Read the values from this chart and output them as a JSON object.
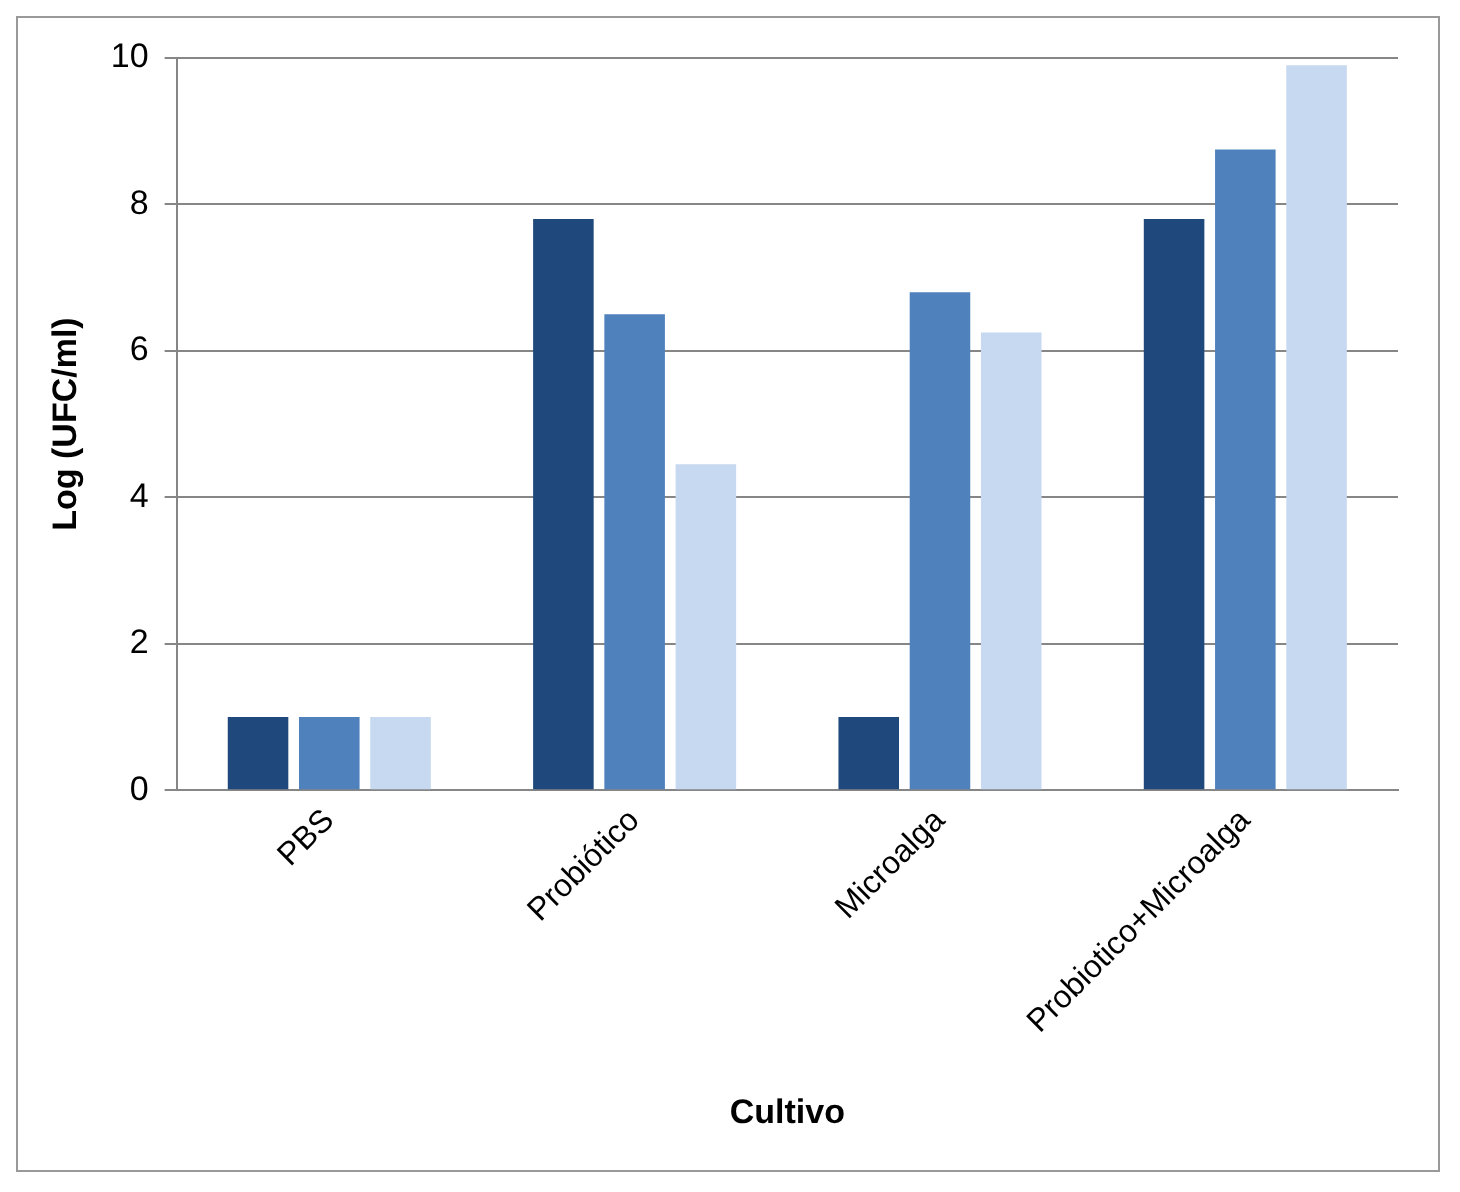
{
  "chart_data": {
    "type": "bar",
    "xlabel": "Cultivo",
    "ylabel": "Log (UFC/ml)",
    "categories": [
      "PBS",
      "Probiótico",
      "Microalga",
      "Probiotico+Microalga"
    ],
    "series": [
      {
        "color": "#1f497d",
        "values": [
          1.0,
          7.8,
          1.0,
          7.8
        ]
      },
      {
        "color": "#4f81bd",
        "values": [
          1.0,
          6.5,
          6.8,
          8.75
        ]
      },
      {
        "color": "#c6d9f1",
        "values": [
          1.0,
          4.45,
          6.25,
          9.9
        ]
      }
    ],
    "ylim": [
      0,
      10
    ],
    "yticks": [
      0,
      2,
      4,
      6,
      8,
      10
    ],
    "grid": "y",
    "legend": false
  }
}
